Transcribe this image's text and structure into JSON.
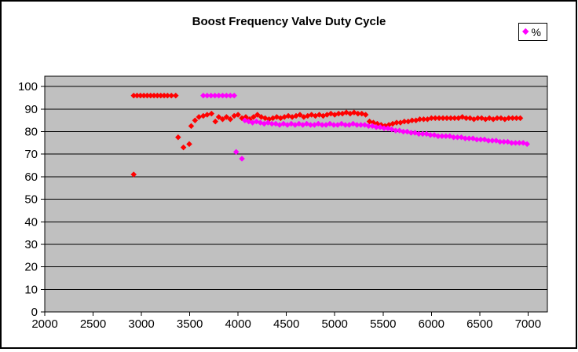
{
  "title": "Boost Frequency Valve Duty Cycle",
  "legend": {
    "label": "%",
    "marker": "diamond-icon",
    "marker_color": "#FF00FF",
    "position": "top-right"
  },
  "colors": {
    "plot_background": "#C0C0C0",
    "gridline": "#000000",
    "series_red": "#FF0000",
    "series_magenta": "#FF00FF",
    "chart_border": "#000000"
  },
  "chart_data": {
    "type": "scatter",
    "title": "Boost Frequency Valve Duty Cycle",
    "xlabel": "",
    "ylabel": "",
    "x_ticks": [
      2000,
      2500,
      3000,
      3500,
      4000,
      4500,
      5000,
      5500,
      6000,
      6500,
      7000
    ],
    "y_ticks": [
      0,
      10,
      20,
      30,
      40,
      50,
      60,
      70,
      80,
      90,
      100
    ],
    "xlim": [
      2000,
      7200
    ],
    "ylim": [
      0,
      104.6
    ],
    "grid": "horizontal",
    "legend_entries": [
      "%"
    ],
    "legend_position": "top-right",
    "plot_bg": "#C0C0C0",
    "marker": "diamond",
    "series": [
      {
        "name": "",
        "color": "#FF0000",
        "points": [
          [
            2920,
            61
          ],
          [
            2920,
            96
          ],
          [
            2955,
            96
          ],
          [
            2990,
            96
          ],
          [
            3025,
            96
          ],
          [
            3060,
            96
          ],
          [
            3095,
            96
          ],
          [
            3130,
            96
          ],
          [
            3165,
            96
          ],
          [
            3200,
            96
          ],
          [
            3235,
            96
          ],
          [
            3270,
            96
          ],
          [
            3310,
            96
          ],
          [
            3355,
            96
          ],
          [
            3380,
            77.5
          ],
          [
            3435,
            73
          ],
          [
            3495,
            74.5
          ],
          [
            3515,
            82.5
          ],
          [
            3555,
            85
          ],
          [
            3595,
            86.5
          ],
          [
            3640,
            87
          ],
          [
            3680,
            87.5
          ],
          [
            3725,
            88
          ],
          [
            3765,
            84.5
          ],
          [
            3800,
            86.5
          ],
          [
            3840,
            85.5
          ],
          [
            3880,
            86.5
          ],
          [
            3920,
            85.5
          ],
          [
            3960,
            87
          ],
          [
            4000,
            87.5
          ],
          [
            4040,
            86
          ],
          [
            4080,
            86.5
          ],
          [
            4120,
            85.5
          ],
          [
            4160,
            86.5
          ],
          [
            4200,
            87.5
          ],
          [
            4240,
            86.5
          ],
          [
            4280,
            86
          ],
          [
            4320,
            85.5
          ],
          [
            4360,
            86
          ],
          [
            4400,
            86.5
          ],
          [
            4440,
            86
          ],
          [
            4480,
            86.5
          ],
          [
            4520,
            87
          ],
          [
            4560,
            86.5
          ],
          [
            4600,
            87
          ],
          [
            4640,
            87.5
          ],
          [
            4680,
            86.5
          ],
          [
            4720,
            87
          ],
          [
            4760,
            87.5
          ],
          [
            4800,
            87
          ],
          [
            4840,
            87.5
          ],
          [
            4880,
            87
          ],
          [
            4920,
            87.5
          ],
          [
            4960,
            88
          ],
          [
            5000,
            87.5
          ],
          [
            5040,
            88
          ],
          [
            5080,
            88
          ],
          [
            5120,
            88.5
          ],
          [
            5160,
            88
          ],
          [
            5200,
            88.5
          ],
          [
            5240,
            88
          ],
          [
            5280,
            88
          ],
          [
            5320,
            87.5
          ],
          [
            5360,
            84.5
          ],
          [
            5400,
            84
          ],
          [
            5440,
            83.5
          ],
          [
            5480,
            83
          ],
          [
            5520,
            82.5
          ],
          [
            5560,
            83
          ],
          [
            5600,
            83.5
          ],
          [
            5640,
            84
          ],
          [
            5680,
            84
          ],
          [
            5720,
            84.5
          ],
          [
            5760,
            84.5
          ],
          [
            5800,
            85
          ],
          [
            5840,
            85
          ],
          [
            5880,
            85.5
          ],
          [
            5920,
            85.5
          ],
          [
            5960,
            85.5
          ],
          [
            6000,
            86
          ],
          [
            6040,
            86
          ],
          [
            6080,
            86
          ],
          [
            6120,
            86
          ],
          [
            6160,
            86
          ],
          [
            6200,
            86
          ],
          [
            6240,
            86
          ],
          [
            6280,
            86
          ],
          [
            6320,
            86.5
          ],
          [
            6360,
            86
          ],
          [
            6400,
            86
          ],
          [
            6440,
            85.5
          ],
          [
            6480,
            86
          ],
          [
            6520,
            86
          ],
          [
            6560,
            85.5
          ],
          [
            6600,
            86
          ],
          [
            6640,
            85.5
          ],
          [
            6680,
            86
          ],
          [
            6720,
            86
          ],
          [
            6760,
            85.5
          ],
          [
            6800,
            86
          ],
          [
            6840,
            86
          ],
          [
            6880,
            86
          ],
          [
            6920,
            86
          ]
        ]
      },
      {
        "name": "%",
        "color": "#FF00FF",
        "points": [
          [
            3640,
            96
          ],
          [
            3680,
            96
          ],
          [
            3720,
            96
          ],
          [
            3760,
            96
          ],
          [
            3800,
            96
          ],
          [
            3840,
            96
          ],
          [
            3880,
            96
          ],
          [
            3920,
            96
          ],
          [
            3960,
            96
          ],
          [
            3980,
            71
          ],
          [
            4040,
            68
          ],
          [
            4070,
            85
          ],
          [
            4110,
            84.5
          ],
          [
            4150,
            84
          ],
          [
            4190,
            84.5
          ],
          [
            4230,
            84
          ],
          [
            4270,
            83.5
          ],
          [
            4310,
            84
          ],
          [
            4350,
            83.5
          ],
          [
            4390,
            83.5
          ],
          [
            4430,
            83
          ],
          [
            4470,
            83.5
          ],
          [
            4510,
            83
          ],
          [
            4550,
            83.5
          ],
          [
            4590,
            83
          ],
          [
            4630,
            83.5
          ],
          [
            4670,
            83
          ],
          [
            4710,
            83.5
          ],
          [
            4750,
            83
          ],
          [
            4790,
            83
          ],
          [
            4830,
            83.5
          ],
          [
            4870,
            83
          ],
          [
            4910,
            83
          ],
          [
            4950,
            83.5
          ],
          [
            4990,
            83
          ],
          [
            5030,
            83
          ],
          [
            5070,
            83.5
          ],
          [
            5110,
            83
          ],
          [
            5150,
            83
          ],
          [
            5190,
            83.5
          ],
          [
            5230,
            83
          ],
          [
            5270,
            83
          ],
          [
            5310,
            83
          ],
          [
            5350,
            82.5
          ],
          [
            5390,
            82.5
          ],
          [
            5430,
            82
          ],
          [
            5470,
            82
          ],
          [
            5510,
            81.5
          ],
          [
            5550,
            81.5
          ],
          [
            5590,
            81
          ],
          [
            5630,
            80.5
          ],
          [
            5670,
            80.5
          ],
          [
            5710,
            80
          ],
          [
            5750,
            80
          ],
          [
            5790,
            79.5
          ],
          [
            5830,
            79.5
          ],
          [
            5870,
            79
          ],
          [
            5910,
            79
          ],
          [
            5950,
            79
          ],
          [
            5990,
            78.5
          ],
          [
            6030,
            78.5
          ],
          [
            6070,
            78
          ],
          [
            6110,
            78
          ],
          [
            6150,
            78
          ],
          [
            6190,
            78
          ],
          [
            6230,
            77.5
          ],
          [
            6270,
            77.5
          ],
          [
            6310,
            77.5
          ],
          [
            6350,
            77
          ],
          [
            6390,
            77
          ],
          [
            6430,
            77
          ],
          [
            6470,
            76.5
          ],
          [
            6510,
            76.5
          ],
          [
            6550,
            76.5
          ],
          [
            6590,
            76
          ],
          [
            6630,
            76
          ],
          [
            6670,
            76
          ],
          [
            6710,
            75.5
          ],
          [
            6750,
            75.5
          ],
          [
            6790,
            75.5
          ],
          [
            6830,
            75
          ],
          [
            6870,
            75
          ],
          [
            6910,
            75
          ],
          [
            6950,
            75
          ],
          [
            6990,
            74.5
          ]
        ]
      }
    ]
  }
}
